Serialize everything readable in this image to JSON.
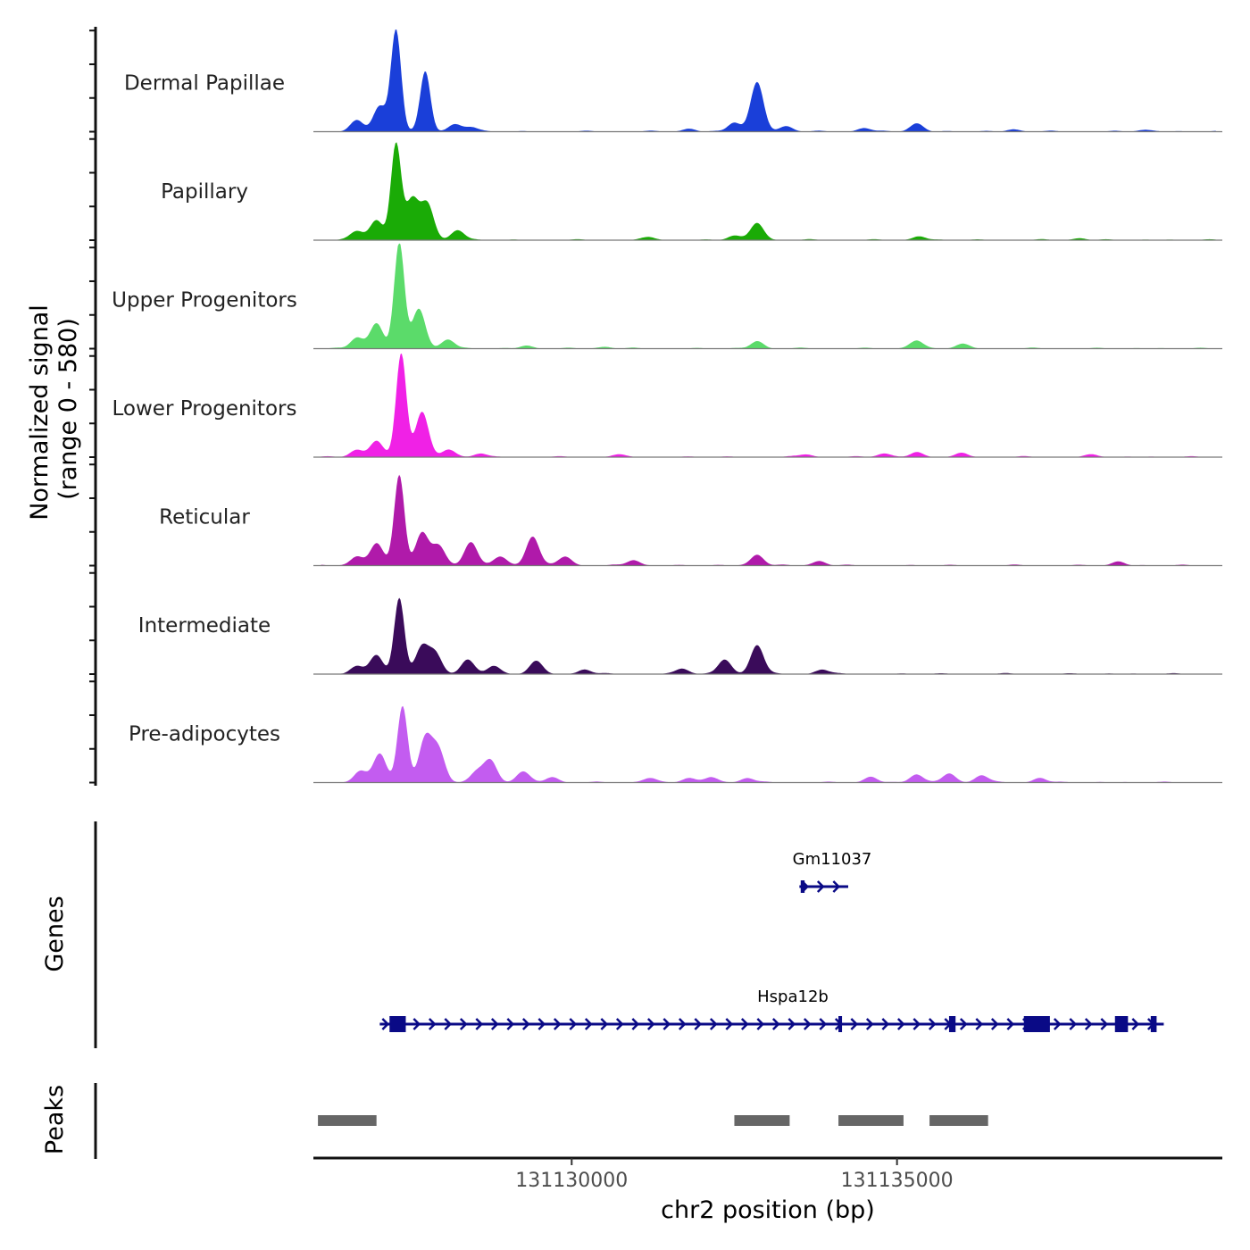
{
  "chart_data": {
    "type": "area",
    "title": "",
    "ylabel_line1": "Normalized signal",
    "ylabel_line2": "(range 0 - 580)",
    "ylim": [
      0,
      580
    ],
    "xlabel": "chr2 position (bp)",
    "xlim": [
      131126030,
      131140000
    ],
    "x_ticks": [
      131130000,
      131135000
    ],
    "x_tick_labels": [
      "131130000",
      "131135000"
    ],
    "tracks": [
      {
        "name": "Dermal Papillae",
        "color": "#1a3fd9",
        "peaks": [
          [
            131127300,
            560
          ],
          [
            131127050,
            140
          ],
          [
            131126700,
            60
          ],
          [
            131127750,
            330
          ],
          [
            131128200,
            40
          ],
          [
            131128450,
            25
          ],
          [
            131132850,
            270
          ],
          [
            131132500,
            50
          ],
          [
            131133300,
            30
          ],
          [
            131135300,
            45
          ],
          [
            131134500,
            20
          ],
          [
            131131800,
            15
          ],
          [
            131136800,
            12
          ],
          [
            131138800,
            10
          ]
        ]
      },
      {
        "name": "Papillary",
        "color": "#1aab06",
        "peaks": [
          [
            131127300,
            530
          ],
          [
            131127000,
            110
          ],
          [
            131126700,
            50
          ],
          [
            131127550,
            220
          ],
          [
            131127780,
            200
          ],
          [
            131128250,
            55
          ],
          [
            131132850,
            95
          ],
          [
            131132500,
            25
          ],
          [
            131135350,
            20
          ],
          [
            131131200,
            15
          ],
          [
            131137800,
            10
          ]
        ]
      },
      {
        "name": "Upper Progenitors",
        "color": "#5bdb6a",
        "peaks": [
          [
            131127350,
            580
          ],
          [
            131127000,
            140
          ],
          [
            131126700,
            60
          ],
          [
            131127650,
            220
          ],
          [
            131128100,
            50
          ],
          [
            131132850,
            40
          ],
          [
            131135300,
            45
          ],
          [
            131136000,
            25
          ],
          [
            131129300,
            15
          ],
          [
            131130500,
            10
          ]
        ]
      },
      {
        "name": "Lower Progenitors",
        "color": "#f021e6",
        "peaks": [
          [
            131127380,
            570
          ],
          [
            131127000,
            90
          ],
          [
            131126700,
            40
          ],
          [
            131127700,
            250
          ],
          [
            131128100,
            40
          ],
          [
            131128600,
            20
          ],
          [
            131133600,
            15
          ],
          [
            131134800,
            20
          ],
          [
            131135300,
            25
          ],
          [
            131136000,
            20
          ],
          [
            131130700,
            12
          ],
          [
            131138000,
            12
          ]
        ]
      },
      {
        "name": "Reticular",
        "color": "#b01aaa",
        "peaks": [
          [
            131127350,
            500
          ],
          [
            131127000,
            120
          ],
          [
            131126700,
            50
          ],
          [
            131127700,
            180
          ],
          [
            131127950,
            110
          ],
          [
            131128450,
            130
          ],
          [
            131128900,
            50
          ],
          [
            131129400,
            160
          ],
          [
            131129900,
            50
          ],
          [
            131130950,
            30
          ],
          [
            131132850,
            60
          ],
          [
            131133800,
            25
          ],
          [
            131138400,
            20
          ]
        ]
      },
      {
        "name": "Intermediate",
        "color": "#3a0b5a",
        "peaks": [
          [
            131127350,
            420
          ],
          [
            131127000,
            100
          ],
          [
            131126700,
            45
          ],
          [
            131127700,
            150
          ],
          [
            131127900,
            110
          ],
          [
            131128400,
            80
          ],
          [
            131128800,
            45
          ],
          [
            131129450,
            70
          ],
          [
            131130200,
            25
          ],
          [
            131131700,
            30
          ],
          [
            131132350,
            80
          ],
          [
            131132850,
            160
          ],
          [
            131133850,
            25
          ]
        ]
      },
      {
        "name": "Pre-adipocytes",
        "color": "#c35cf0",
        "peaks": [
          [
            131127400,
            420
          ],
          [
            131127050,
            160
          ],
          [
            131126750,
            60
          ],
          [
            131127750,
            240
          ],
          [
            131127950,
            180
          ],
          [
            131128750,
            120
          ],
          [
            131128550,
            60
          ],
          [
            131129250,
            60
          ],
          [
            131129700,
            30
          ],
          [
            131131200,
            25
          ],
          [
            131131800,
            25
          ],
          [
            131132150,
            30
          ],
          [
            131132700,
            25
          ],
          [
            131134600,
            30
          ],
          [
            131135300,
            45
          ],
          [
            131135800,
            50
          ],
          [
            131136300,
            40
          ],
          [
            131137200,
            25
          ]
        ]
      }
    ],
    "genes_panel_label": "Genes",
    "genes": [
      {
        "name": "Gm11037",
        "start": 131133500,
        "end": 131134250,
        "strand": "+",
        "exons": [
          [
            131133520,
            131133580
          ]
        ]
      },
      {
        "name": "Hspa12b",
        "start": 131127050,
        "end": 131139100,
        "strand": "+",
        "exons": [
          [
            131127200,
            131127450
          ],
          [
            131134100,
            131134150
          ],
          [
            131135800,
            131135900
          ],
          [
            131136950,
            131137350
          ],
          [
            131138350,
            131138550
          ],
          [
            131138900,
            131138990
          ]
        ]
      }
    ],
    "peaks_panel_label": "Peaks",
    "peak_regions": [
      [
        131126100,
        131127000
      ],
      [
        131132500,
        131133350
      ],
      [
        131134100,
        131135100
      ],
      [
        131135500,
        131136400
      ]
    ],
    "peak_color": "#666666",
    "gene_color": "#0a0a86"
  }
}
